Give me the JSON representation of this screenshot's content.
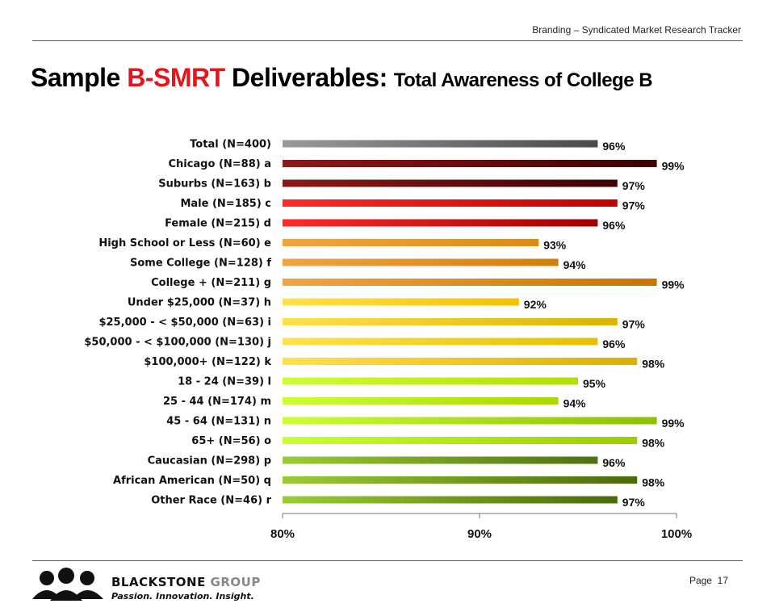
{
  "header": {
    "tracker": "Branding – Syndicated Market Research Tracker"
  },
  "title": {
    "part1": "Sample ",
    "part2": "B-SMRT",
    "part3": " Deliverables:",
    "part4": "Total Awareness of College B"
  },
  "footer": {
    "brand_main": "BLACKSTONE",
    "brand_group": " GROUP",
    "tagline": "Passion. Innovation. Insight.",
    "page_label": "Page",
    "page_number": "17"
  },
  "chart_data": {
    "type": "bar",
    "orientation": "horizontal",
    "title": "",
    "xlabel": "",
    "ylabel": "",
    "xlim": [
      80,
      100
    ],
    "ticks": [
      "80%",
      "90%",
      "100%"
    ],
    "tick_values": [
      80,
      90,
      100
    ],
    "value_suffix": "%",
    "grid": false,
    "categories": [
      "Total (N=400)",
      "Chicago (N=88) a",
      "Suburbs (N=163) b",
      "Male (N=185) c",
      "Female (N=215) d",
      "High School or Less (N=60) e",
      "Some College (N=128) f",
      "College + (N=211) g",
      "Under $25,000 (N=37) h",
      "$25,000 - < $50,000 (N=63) i",
      "$50,000 - < $100,000 (N=130) j",
      "$100,000+ (N=122) k",
      "18 - 24 (N=39) l",
      "25 - 44 (N=174) m",
      "45 - 64 (N=131) n",
      "65+ (N=56) o",
      "Caucasian (N=298) p",
      "African American (N=50) q",
      "Other Race (N=46) r"
    ],
    "values": [
      96,
      99,
      97,
      97,
      96,
      93,
      94,
      99,
      92,
      97,
      96,
      98,
      95,
      94,
      99,
      98,
      96,
      98,
      97
    ],
    "colors": [
      [
        "#9a9a9a",
        "#4a4a4a"
      ],
      [
        "#8b1a1a",
        "#3d0000"
      ],
      [
        "#8b1a1a",
        "#3d0000"
      ],
      [
        "#ff2a2a",
        "#c00000"
      ],
      [
        "#ff2a2a",
        "#a00000"
      ],
      [
        "#f2a443",
        "#dd8a14"
      ],
      [
        "#f2a443",
        "#d17e0a"
      ],
      [
        "#f2a443",
        "#c97400"
      ],
      [
        "#ffe24a",
        "#f2c200"
      ],
      [
        "#ffe24a",
        "#d9b400"
      ],
      [
        "#ffe24a",
        "#e6c000"
      ],
      [
        "#ffe24a",
        "#d9b000"
      ],
      [
        "#ccff33",
        "#b0e000"
      ],
      [
        "#ccff33",
        "#a8d800"
      ],
      [
        "#ccff33",
        "#8cc000"
      ],
      [
        "#ccff33",
        "#9ccc00"
      ],
      [
        "#9acd32",
        "#4f6f10"
      ],
      [
        "#9acd32",
        "#4a6a0a"
      ],
      [
        "#9acd32",
        "#4a6a0a"
      ]
    ]
  }
}
